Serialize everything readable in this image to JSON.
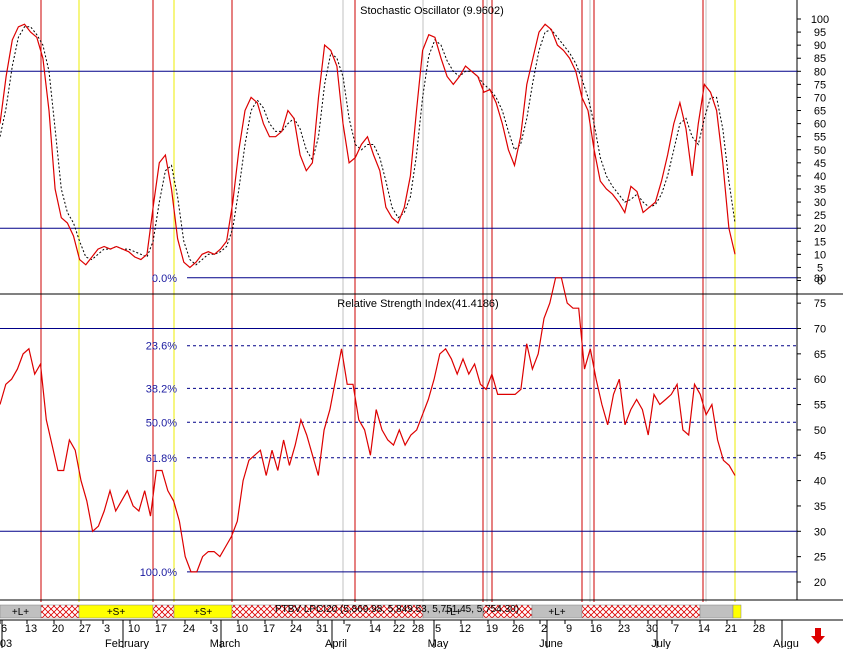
{
  "colors": {
    "line": "#dd0000",
    "signal": "#000000",
    "level_line": "#000088",
    "fib_text": "#1a1aa0",
    "vline_red": "#cc0000",
    "vline_yellow": "#eeee00",
    "vline_grey": "#c0c0c0",
    "band_grey": "#c0c0c0",
    "band_yellow": "#ffff00",
    "band_hatch": "#dd0000",
    "arrow": "#dd0000"
  },
  "chart_data": [
    {
      "type": "line",
      "title": "Stochastic Oscillator (9.9602)",
      "ylim": [
        -3,
        103
      ],
      "yticks": [
        0,
        5,
        10,
        15,
        20,
        25,
        30,
        35,
        40,
        45,
        50,
        55,
        60,
        65,
        70,
        75,
        80,
        85,
        90,
        95,
        100
      ],
      "levels": [
        80,
        20
      ],
      "series": [
        {
          "values": [
            60,
            78,
            92,
            97,
            98,
            95,
            93,
            85,
            65,
            35,
            24,
            22,
            17,
            8,
            6,
            9,
            12,
            13,
            12,
            13,
            12,
            11,
            9,
            8,
            10,
            28,
            45,
            48,
            35,
            16,
            7,
            5,
            7,
            10,
            11,
            10,
            12,
            15,
            30,
            50,
            65,
            70,
            68,
            60,
            55,
            55,
            57,
            65,
            62,
            48,
            42,
            45,
            70,
            90,
            88,
            82,
            60,
            45,
            47,
            52,
            55,
            48,
            42,
            28,
            24,
            22,
            28,
            40,
            65,
            88,
            94,
            93,
            85,
            78,
            75,
            78,
            82,
            80,
            78,
            72,
            73,
            68,
            60,
            50,
            44,
            55,
            75,
            85,
            95,
            98,
            96,
            90,
            88,
            85,
            80,
            70,
            65,
            50,
            38,
            35,
            33,
            30,
            26,
            36,
            34,
            26,
            28,
            30,
            38,
            48,
            60,
            68,
            58,
            40,
            60,
            75,
            72,
            65,
            45,
            20,
            10
          ]
        },
        {
          "values": [
            55,
            66,
            82,
            93,
            97,
            97,
            94,
            90,
            80,
            58,
            35,
            26,
            22,
            15,
            9,
            8,
            10,
            12,
            12,
            13,
            12,
            12,
            11,
            10,
            9,
            15,
            30,
            42,
            44,
            32,
            15,
            8,
            6,
            8,
            10,
            10,
            11,
            13,
            20,
            35,
            52,
            65,
            69,
            66,
            60,
            57,
            57,
            60,
            62,
            58,
            50,
            46,
            55,
            75,
            87,
            85,
            78,
            62,
            52,
            50,
            52,
            52,
            47,
            38,
            28,
            24,
            26,
            32,
            48,
            70,
            86,
            92,
            90,
            84,
            80,
            78,
            80,
            80,
            78,
            75,
            73,
            70,
            65,
            57,
            50,
            52,
            62,
            76,
            88,
            95,
            96,
            93,
            90,
            87,
            83,
            77,
            70,
            60,
            47,
            40,
            36,
            33,
            30,
            31,
            33,
            30,
            28,
            29,
            33,
            40,
            50,
            60,
            62,
            55,
            52,
            62,
            70,
            70,
            58,
            38,
            22
          ]
        }
      ]
    },
    {
      "type": "line",
      "title": "Relative Strength Index(41.4186)",
      "ylim": [
        16,
        83
      ],
      "yticks": [
        20,
        25,
        30,
        35,
        40,
        45,
        50,
        55,
        60,
        65,
        70,
        75,
        80
      ],
      "levels": [
        70,
        30
      ],
      "fibonacci": [
        {
          "label": "0.0%",
          "value": 80
        },
        {
          "label": "23.6%",
          "value": 66.6
        },
        {
          "label": "38.2%",
          "value": 58.2
        },
        {
          "label": "50.0%",
          "value": 51.5
        },
        {
          "label": "61.8%",
          "value": 44.5
        },
        {
          "label": "100.0%",
          "value": 22
        }
      ],
      "series": [
        {
          "values": [
            55,
            59,
            60,
            62,
            65,
            66,
            61,
            63,
            52,
            47,
            42,
            42,
            48,
            46,
            40,
            36,
            30,
            31,
            34,
            38,
            34,
            36,
            38,
            35,
            34,
            38,
            33,
            42,
            42,
            38,
            36,
            32,
            25,
            22,
            22,
            25,
            26,
            26,
            25,
            27,
            29,
            32,
            40,
            44,
            45,
            46,
            41,
            46,
            42,
            48,
            43,
            47,
            52,
            49,
            45,
            41,
            50,
            54,
            60,
            66,
            59,
            59,
            52,
            50,
            45,
            54,
            50,
            48,
            47,
            50,
            47,
            49,
            50,
            53,
            56,
            60,
            65,
            66,
            64,
            61,
            64,
            61,
            63,
            59,
            58,
            61,
            57,
            57,
            57,
            57,
            58,
            67,
            62,
            65,
            72,
            75,
            80,
            80,
            75,
            74,
            74,
            62,
            66,
            60,
            55,
            51,
            57,
            60,
            51,
            54,
            56,
            54,
            49,
            57,
            55,
            56,
            57,
            59,
            50,
            49,
            59,
            57,
            53,
            55,
            48,
            44,
            43,
            41
          ]
        }
      ]
    }
  ],
  "time_axis": {
    "day_labels": [
      "6",
      "13",
      "20",
      "27",
      "3",
      "10",
      "17",
      "24",
      "3",
      "10",
      "17",
      "24",
      "31",
      "7",
      "14",
      "22",
      "28",
      "5",
      "12",
      "19",
      "26",
      "2",
      "9",
      "16",
      "23",
      "30",
      "7",
      "14",
      "21",
      "28"
    ],
    "month_labels": [
      "03",
      "February",
      "March",
      "April",
      "May",
      "June",
      "July",
      "Augu"
    ]
  },
  "signal_band": {
    "text": "PTBV LPCI20 (5,869.98, 5,849.53, 5,751.45, 5,754.30)",
    "segments": [
      {
        "kind": "grey",
        "label": "+L+"
      },
      {
        "kind": "hatch",
        "label": ""
      },
      {
        "kind": "yellow",
        "label": "+S+"
      },
      {
        "kind": "hatch",
        "label": ""
      },
      {
        "kind": "yellow",
        "label": "+S+"
      },
      {
        "kind": "hatch",
        "label": ""
      },
      {
        "kind": "grey",
        "label": "+L+"
      },
      {
        "kind": "hatch",
        "label": ""
      },
      {
        "kind": "grey",
        "label": "+L+"
      },
      {
        "kind": "hatch",
        "label": ""
      },
      {
        "kind": "grey",
        "label": ""
      },
      {
        "kind": "yellow",
        "label": ""
      }
    ]
  },
  "icons": {
    "scroll_arrow": "down-arrow-icon"
  }
}
